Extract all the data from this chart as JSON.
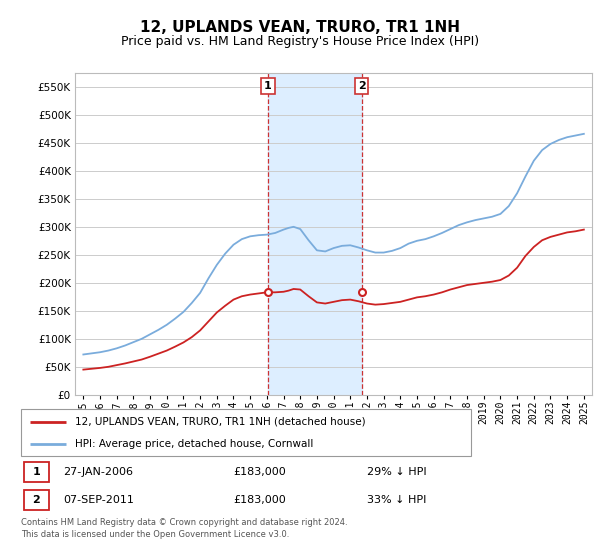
{
  "title": "12, UPLANDS VEAN, TRURO, TR1 1NH",
  "subtitle": "Price paid vs. HM Land Registry's House Price Index (HPI)",
  "title_fontsize": 11,
  "subtitle_fontsize": 9,
  "bg_color": "#ffffff",
  "plot_bg_color": "#ffffff",
  "grid_color": "#cccccc",
  "hpi_color": "#7aacdc",
  "price_color": "#cc2222",
  "sale1_x": 2006.07,
  "sale1_y": 183000,
  "sale2_x": 2011.68,
  "sale2_y": 183000,
  "shade_color": "#ddeeff",
  "vline_color": "#cc3333",
  "ylim": [
    0,
    575000
  ],
  "xlim_start": 1994.5,
  "xlim_end": 2025.5,
  "legend_label1": "12, UPLANDS VEAN, TRURO, TR1 1NH (detached house)",
  "legend_label2": "HPI: Average price, detached house, Cornwall",
  "annotation1_label": "1",
  "annotation1_date": "27-JAN-2006",
  "annotation1_price": "£183,000",
  "annotation1_pct": "29% ↓ HPI",
  "annotation2_label": "2",
  "annotation2_date": "07-SEP-2011",
  "annotation2_price": "£183,000",
  "annotation2_pct": "33% ↓ HPI",
  "footnote": "Contains HM Land Registry data © Crown copyright and database right 2024.\nThis data is licensed under the Open Government Licence v3.0.",
  "yticks": [
    0,
    50000,
    100000,
    150000,
    200000,
    250000,
    300000,
    350000,
    400000,
    450000,
    500000,
    550000
  ],
  "ytick_labels": [
    "£0",
    "£50K",
    "£100K",
    "£150K",
    "£200K",
    "£250K",
    "£300K",
    "£350K",
    "£400K",
    "£450K",
    "£500K",
    "£550K"
  ],
  "xtick_years": [
    1995,
    1996,
    1997,
    1998,
    1999,
    2000,
    2001,
    2002,
    2003,
    2004,
    2005,
    2006,
    2007,
    2008,
    2009,
    2010,
    2011,
    2012,
    2013,
    2014,
    2015,
    2016,
    2017,
    2018,
    2019,
    2020,
    2021,
    2022,
    2023,
    2024,
    2025
  ],
  "hpi_x": [
    1995.0,
    1995.5,
    1996.0,
    1996.5,
    1997.0,
    1997.5,
    1998.0,
    1998.5,
    1999.0,
    1999.5,
    2000.0,
    2000.5,
    2001.0,
    2001.5,
    2002.0,
    2002.5,
    2003.0,
    2003.5,
    2004.0,
    2004.5,
    2005.0,
    2005.5,
    2006.0,
    2006.5,
    2007.0,
    2007.3,
    2007.6,
    2008.0,
    2008.5,
    2009.0,
    2009.5,
    2010.0,
    2010.5,
    2011.0,
    2011.5,
    2012.0,
    2012.5,
    2013.0,
    2013.5,
    2014.0,
    2014.5,
    2015.0,
    2015.5,
    2016.0,
    2016.5,
    2017.0,
    2017.5,
    2018.0,
    2018.5,
    2019.0,
    2019.5,
    2020.0,
    2020.5,
    2021.0,
    2021.5,
    2022.0,
    2022.5,
    2023.0,
    2023.5,
    2024.0,
    2024.5,
    2025.0
  ],
  "hpi_y": [
    72000,
    74000,
    76000,
    79000,
    83000,
    88000,
    94000,
    100000,
    108000,
    116000,
    125000,
    136000,
    148000,
    164000,
    182000,
    208000,
    232000,
    252000,
    268000,
    278000,
    283000,
    285000,
    286000,
    289000,
    295000,
    298000,
    300000,
    296000,
    276000,
    258000,
    256000,
    262000,
    266000,
    267000,
    263000,
    258000,
    254000,
    254000,
    257000,
    262000,
    270000,
    275000,
    278000,
    283000,
    289000,
    296000,
    303000,
    308000,
    312000,
    315000,
    318000,
    323000,
    337000,
    360000,
    390000,
    418000,
    437000,
    448000,
    455000,
    460000,
    463000,
    466000
  ],
  "price_y": [
    45000,
    46500,
    48000,
    50000,
    53000,
    56000,
    59500,
    63000,
    68000,
    73500,
    79000,
    86000,
    93500,
    103000,
    115000,
    131000,
    147000,
    159000,
    170000,
    176000,
    179000,
    181000,
    183000,
    183000,
    184000,
    186000,
    189000,
    188000,
    176000,
    165000,
    163000,
    166000,
    169000,
    170000,
    167000,
    163000,
    161000,
    162000,
    164000,
    166000,
    170000,
    174000,
    176000,
    179000,
    183000,
    188000,
    192000,
    196000,
    198000,
    200000,
    202000,
    205000,
    213000,
    227000,
    248000,
    264000,
    276000,
    282000,
    286000,
    290000,
    292000,
    295000
  ]
}
